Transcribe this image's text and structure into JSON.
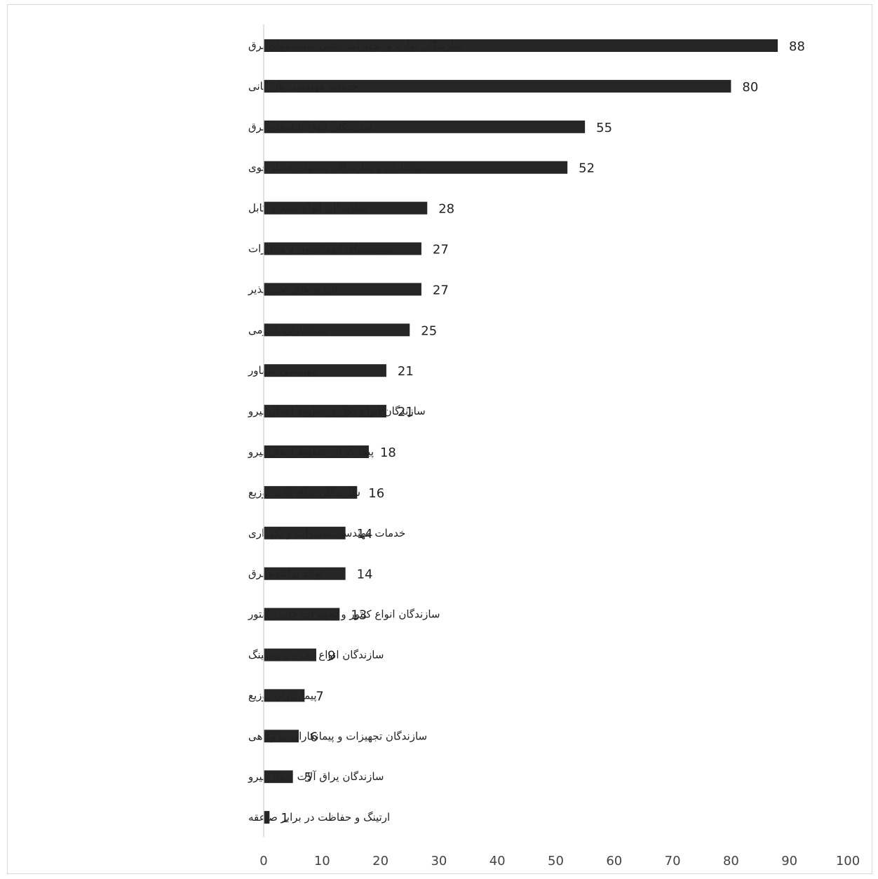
{
  "chart_data": {
    "type": "bar",
    "orientation": "horizontal",
    "categories": [
      "سازندگان لوازم و تجهیزات جانبی سیستمهای برق",
      "خدمات مهندسی بازرگانی",
      "سازندگان انواع تابلوهای برق",
      "پیمانکاران و سازندگان پستهای فشار قوی",
      "سازندگان انواع سیم و کابل",
      "سیستمهای اتوماسیون و مخابرات",
      "انرژی های تجدیدپذیر",
      "پیمانکاران عمومی",
      "مهندسی مشاور",
      "سازندگان انواع دکل و خطوط انتقال نیرو",
      "پیمانکاران خطوط انتقال نیرو",
      "سازندگان یراق آلات توزیع",
      "خدمات مهندسی،تعمیرات و نگهداری",
      "تولید پراکنده برق",
      "سازندگان انواع کنتور و تجهیزات جانبی کنتور",
      "سازندگان انواع مقره و بوشینگ",
      "پیمانکاران توزیع",
      "سازندگان تجهیزات و پیمانکاران نیروگاهی",
      "سازندگان یراق آلات انتقال نیرو",
      "ارتینگ و حفاظت در برابر صاعقه"
    ],
    "values": [
      88,
      80,
      55,
      52,
      28,
      27,
      27,
      25,
      21,
      21,
      18,
      16,
      14,
      14,
      13,
      9,
      7,
      6,
      5,
      1
    ],
    "xlim": [
      0,
      100
    ],
    "xticks": [
      0,
      10,
      20,
      30,
      40,
      50,
      60,
      70,
      80,
      90,
      100
    ],
    "title": "",
    "xlabel": "",
    "ylabel": "",
    "grid": false,
    "legend": "none",
    "bar_color": "#262626",
    "axis_color": "#d9d9d9"
  }
}
